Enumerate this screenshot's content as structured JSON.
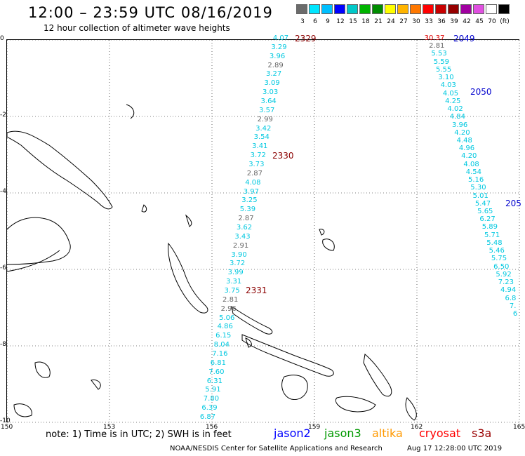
{
  "title": "12:00 – 23:59 UTC 08/16/2019",
  "subtitle": "12 hour collection of altimeter wave heights",
  "legend": {
    "colors": [
      "#6b6b6b",
      "#00e6ff",
      "#00bfff",
      "#0000ff",
      "#00c8c8",
      "#00b400",
      "#008c00",
      "#ffff00",
      "#ffb400",
      "#ff7800",
      "#ff0000",
      "#c80000",
      "#960000",
      "#a000a0",
      "#e050e0",
      "#ffffff",
      "#000000"
    ],
    "labels": [
      "3",
      "6",
      "9",
      "12",
      "15",
      "18",
      "21",
      "24",
      "27",
      "30",
      "33",
      "36",
      "39",
      "42",
      "45",
      "70",
      "(ft)"
    ]
  },
  "axes": {
    "lat_labels": [
      "0",
      "-2",
      "-4",
      "-6",
      "-8",
      "-10"
    ],
    "lon_labels": [
      "150",
      "153",
      "156",
      "159",
      "162",
      "165"
    ]
  },
  "passes": [
    {
      "id": "2329",
      "color": "#8b0000"
    },
    {
      "id": "2330",
      "color": "#8b0000"
    },
    {
      "id": "2331",
      "color": "#8b0000"
    },
    {
      "id": "2049",
      "color": "#0000cd"
    },
    {
      "id": "2050",
      "color": "#0000cd"
    },
    {
      "id": "205",
      "color": "#0000cd"
    }
  ],
  "track1": [
    "4.07",
    "3.29",
    "3.96",
    "2.89",
    "3.27",
    "3.09",
    "3.03",
    "3.64",
    "3.57",
    "2.99",
    "3.42",
    "3.54",
    "3.41",
    "3.72",
    "3.73",
    "2.87",
    "4.08",
    "3.97",
    "3.25",
    "5.39",
    "2.87",
    "3.62",
    "3.43",
    "2.91",
    "3.90",
    "3.72",
    "3.99",
    "3.31",
    "3.75",
    "2.81",
    "2.96",
    "5.06",
    "4.86",
    "6.15",
    "8.04",
    "7.16",
    "6.81",
    "7.60",
    "6.31",
    "5.91",
    "7.80",
    "6.39",
    "6.87"
  ],
  "track1_colors": [
    "c",
    "c",
    "c",
    "g",
    "c",
    "c",
    "c",
    "c",
    "c",
    "g",
    "c",
    "c",
    "c",
    "c",
    "c",
    "g",
    "c",
    "c",
    "c",
    "c",
    "g",
    "c",
    "c",
    "g",
    "c",
    "c",
    "c",
    "c",
    "c",
    "g",
    "g",
    "c",
    "c",
    "c",
    "c",
    "c",
    "c",
    "c",
    "c",
    "c",
    "c",
    "c",
    "c"
  ],
  "track2": [
    "30.37",
    "2.81",
    "5.53",
    "5.59",
    "5.55",
    "3.10",
    "4.03",
    "4.05",
    "4.25",
    "4.02",
    "4.84",
    "3.96",
    "4.20",
    "4.48",
    "4.96",
    "4.20",
    "4.08",
    "4.54",
    "5.16",
    "5.30",
    "5.01",
    "5.47",
    "5.65",
    "6.27",
    "5.89",
    "5.71",
    "5.48",
    "5.46",
    "5.75",
    "6.50",
    "5.92",
    "7.23",
    "4.94",
    "6.8",
    "7.",
    "6"
  ],
  "track2_colors": [
    "r",
    "g",
    "c",
    "c",
    "c",
    "c",
    "c",
    "c",
    "c",
    "c",
    "c",
    "c",
    "c",
    "c",
    "c",
    "c",
    "c",
    "c",
    "c",
    "c",
    "c",
    "c",
    "c",
    "c",
    "c",
    "c",
    "c",
    "c",
    "c",
    "c",
    "c",
    "c",
    "c",
    "c",
    "c",
    "c"
  ],
  "note": "note: 1) Time is in UTC; 2) SWH is in feet",
  "satellites": [
    {
      "name": "jason2",
      "color": "#0000ff"
    },
    {
      "name": "jason3",
      "color": "#009900"
    },
    {
      "name": "altika",
      "color": "#ff9900"
    },
    {
      "name": "cryosat",
      "color": "#ff0000"
    },
    {
      "name": "s3a",
      "color": "#990000"
    }
  ],
  "credit": "NOAA/NESDIS Center for Satellite Applications and Research",
  "timestamp": "Aug 17 12:28:00 UTC 2019"
}
